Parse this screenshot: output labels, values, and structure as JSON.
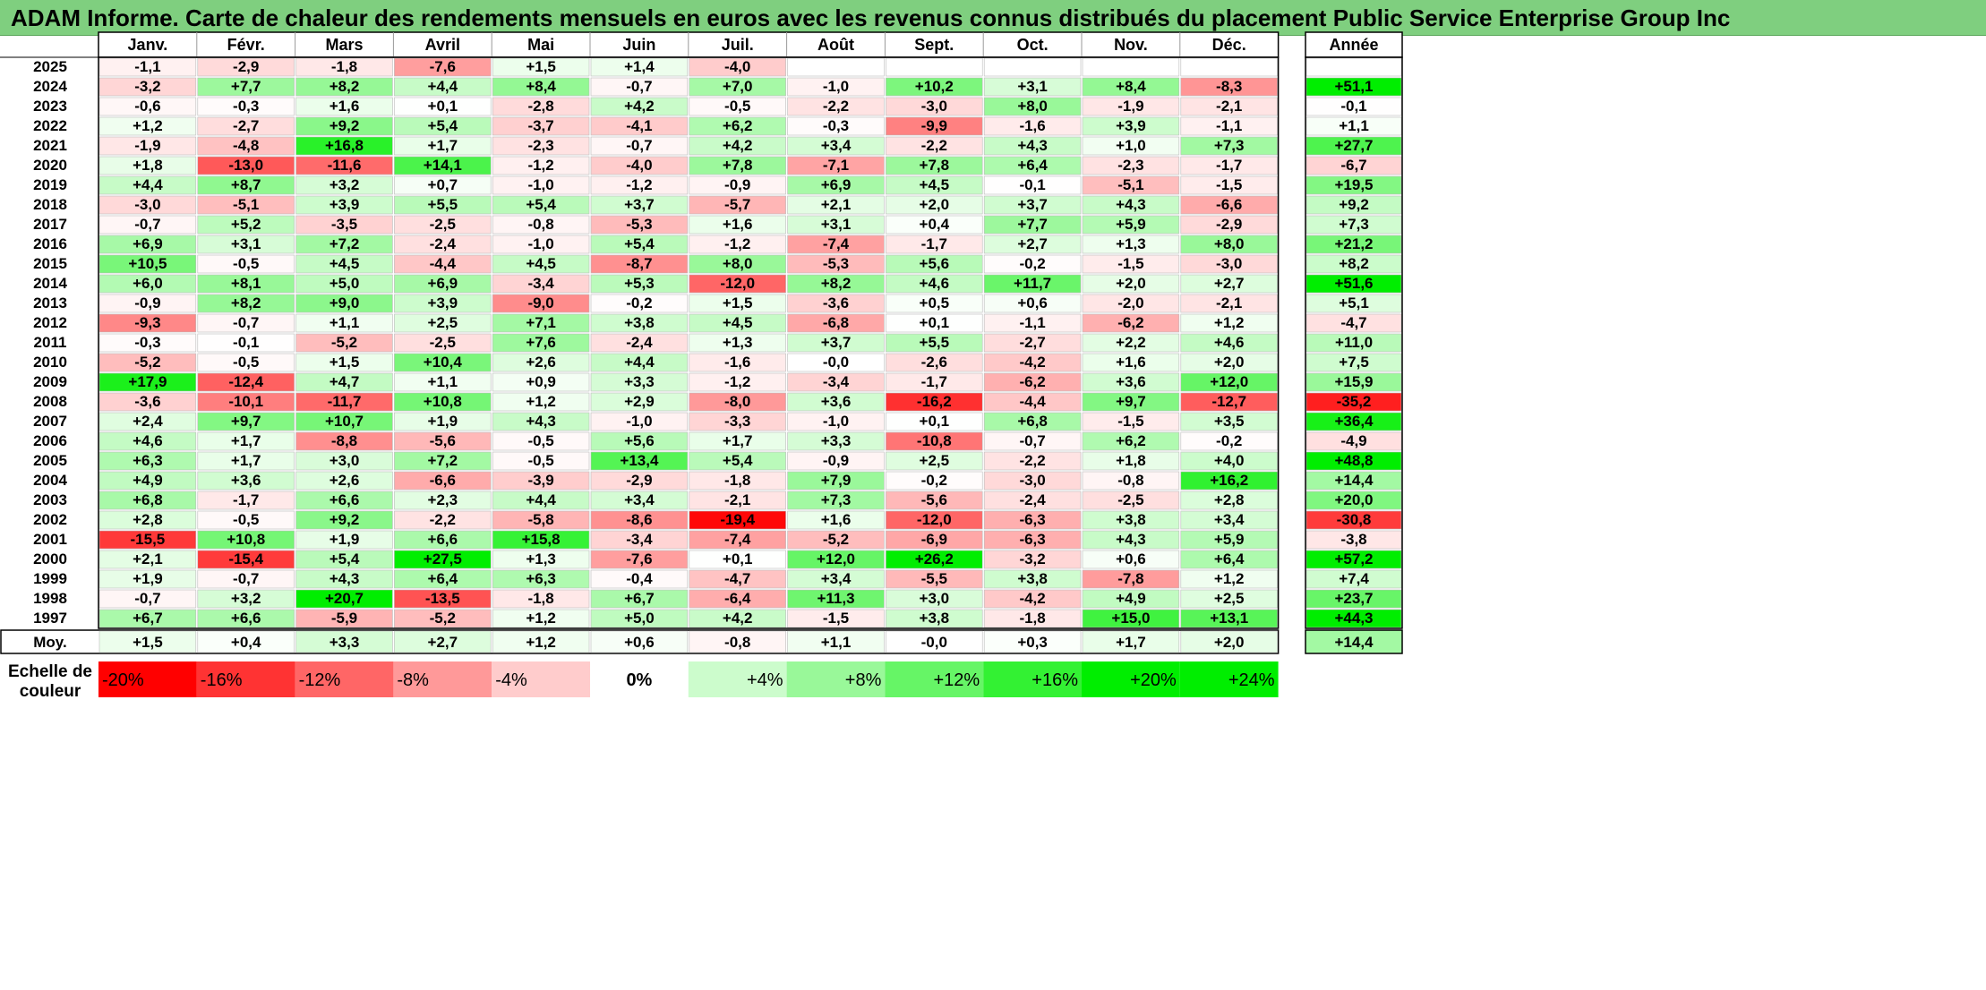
{
  "title": "ADAM Informe. Carte de chaleur des rendements mensuels en euros avec les revenus connus distribués du placement Public Service Enterprise Group Inc",
  "chart_data": {
    "type": "heatmap",
    "columns": [
      "Janv.",
      "Févr.",
      "Mars",
      "Avril",
      "Mai",
      "Juin",
      "Juil.",
      "Août",
      "Sept.",
      "Oct.",
      "Nov.",
      "Déc."
    ],
    "year_header": "Année",
    "rows": [
      {
        "year": "2025",
        "months": [
          "-1,1",
          "-2,9",
          "-1,8",
          "-7,6",
          "+1,5",
          "+1,4",
          "-4,0",
          "",
          "",
          "",
          "",
          ""
        ],
        "total": ""
      },
      {
        "year": "2024",
        "months": [
          "-3,2",
          "+7,7",
          "+8,2",
          "+4,4",
          "+8,4",
          "-0,7",
          "+7,0",
          "-1,0",
          "+10,2",
          "+3,1",
          "+8,4",
          "-8,3"
        ],
        "total": "+51,1"
      },
      {
        "year": "2023",
        "months": [
          "-0,6",
          "-0,3",
          "+1,6",
          "+0,1",
          "-2,8",
          "+4,2",
          "-0,5",
          "-2,2",
          "-3,0",
          "+8,0",
          "-1,9",
          "-2,1"
        ],
        "total": "-0,1"
      },
      {
        "year": "2022",
        "months": [
          "+1,2",
          "-2,7",
          "+9,2",
          "+5,4",
          "-3,7",
          "-4,1",
          "+6,2",
          "-0,3",
          "-9,9",
          "-1,6",
          "+3,9",
          "-1,1"
        ],
        "total": "+1,1"
      },
      {
        "year": "2021",
        "months": [
          "-1,9",
          "-4,8",
          "+16,8",
          "+1,7",
          "-2,3",
          "-0,7",
          "+4,2",
          "+3,4",
          "-2,2",
          "+4,3",
          "+1,0",
          "+7,3"
        ],
        "total": "+27,7"
      },
      {
        "year": "2020",
        "months": [
          "+1,8",
          "-13,0",
          "-11,6",
          "+14,1",
          "-1,2",
          "-4,0",
          "+7,8",
          "-7,1",
          "+7,8",
          "+6,4",
          "-2,3",
          "-1,7"
        ],
        "total": "-6,7"
      },
      {
        "year": "2019",
        "months": [
          "+4,4",
          "+8,7",
          "+3,2",
          "+0,7",
          "-1,0",
          "-1,2",
          "-0,9",
          "+6,9",
          "+4,5",
          "-0,1",
          "-5,1",
          "-1,5"
        ],
        "total": "+19,5"
      },
      {
        "year": "2018",
        "months": [
          "-3,0",
          "-5,1",
          "+3,9",
          "+5,5",
          "+5,4",
          "+3,7",
          "-5,7",
          "+2,1",
          "+2,0",
          "+3,7",
          "+4,3",
          "-6,6"
        ],
        "total": "+9,2"
      },
      {
        "year": "2017",
        "months": [
          "-0,7",
          "+5,2",
          "-3,5",
          "-2,5",
          "-0,8",
          "-5,3",
          "+1,6",
          "+3,1",
          "+0,4",
          "+7,7",
          "+5,9",
          "-2,9"
        ],
        "total": "+7,3"
      },
      {
        "year": "2016",
        "months": [
          "+6,9",
          "+3,1",
          "+7,2",
          "-2,4",
          "-1,0",
          "+5,4",
          "-1,2",
          "-7,4",
          "-1,7",
          "+2,7",
          "+1,3",
          "+8,0"
        ],
        "total": "+21,2"
      },
      {
        "year": "2015",
        "months": [
          "+10,5",
          "-0,5",
          "+4,5",
          "-4,4",
          "+4,5",
          "-8,7",
          "+8,0",
          "-5,3",
          "+5,6",
          "-0,2",
          "-1,5",
          "-3,0"
        ],
        "total": "+8,2"
      },
      {
        "year": "2014",
        "months": [
          "+6,0",
          "+8,1",
          "+5,0",
          "+6,9",
          "-3,4",
          "+5,3",
          "-12,0",
          "+8,2",
          "+4,6",
          "+11,7",
          "+2,0",
          "+2,7"
        ],
        "total": "+51,6"
      },
      {
        "year": "2013",
        "months": [
          "-0,9",
          "+8,2",
          "+9,0",
          "+3,9",
          "-9,0",
          "-0,2",
          "+1,5",
          "-3,6",
          "+0,5",
          "+0,6",
          "-2,0",
          "-2,1"
        ],
        "total": "+5,1"
      },
      {
        "year": "2012",
        "months": [
          "-9,3",
          "-0,7",
          "+1,1",
          "+2,5",
          "+7,1",
          "+3,8",
          "+4,5",
          "-6,8",
          "+0,1",
          "-1,1",
          "-6,2",
          "+1,2"
        ],
        "total": "-4,7"
      },
      {
        "year": "2011",
        "months": [
          "-0,3",
          "-0,1",
          "-5,2",
          "-2,5",
          "+7,6",
          "-2,4",
          "+1,3",
          "+3,7",
          "+5,5",
          "-2,7",
          "+2,2",
          "+4,6"
        ],
        "total": "+11,0"
      },
      {
        "year": "2010",
        "months": [
          "-5,2",
          "-0,5",
          "+1,5",
          "+10,4",
          "+2,6",
          "+4,4",
          "-1,6",
          "-0,0",
          "-2,6",
          "-4,2",
          "+1,6",
          "+2,0"
        ],
        "total": "+7,5"
      },
      {
        "year": "2009",
        "months": [
          "+17,9",
          "-12,4",
          "+4,7",
          "+1,1",
          "+0,9",
          "+3,3",
          "-1,2",
          "-3,4",
          "-1,7",
          "-6,2",
          "+3,6",
          "+12,0"
        ],
        "total": "+15,9"
      },
      {
        "year": "2008",
        "months": [
          "-3,6",
          "-10,1",
          "-11,7",
          "+10,8",
          "+1,2",
          "+2,9",
          "-8,0",
          "+3,6",
          "-16,2",
          "-4,4",
          "+9,7",
          "-12,7"
        ],
        "total": "-35,2"
      },
      {
        "year": "2007",
        "months": [
          "+2,4",
          "+9,7",
          "+10,7",
          "+1,9",
          "+4,3",
          "-1,0",
          "-3,3",
          "-1,0",
          "+0,1",
          "+6,8",
          "-1,5",
          "+3,5"
        ],
        "total": "+36,4"
      },
      {
        "year": "2006",
        "months": [
          "+4,6",
          "+1,7",
          "-8,8",
          "-5,6",
          "-0,5",
          "+5,6",
          "+1,7",
          "+3,3",
          "-10,8",
          "-0,7",
          "+6,2",
          "-0,2"
        ],
        "total": "-4,9"
      },
      {
        "year": "2005",
        "months": [
          "+6,3",
          "+1,7",
          "+3,0",
          "+7,2",
          "-0,5",
          "+13,4",
          "+5,4",
          "-0,9",
          "+2,5",
          "-2,2",
          "+1,8",
          "+4,0"
        ],
        "total": "+48,8"
      },
      {
        "year": "2004",
        "months": [
          "+4,9",
          "+3,6",
          "+2,6",
          "-6,6",
          "-3,9",
          "-2,9",
          "-1,8",
          "+7,9",
          "-0,2",
          "-3,0",
          "-0,8",
          "+16,2"
        ],
        "total": "+14,4"
      },
      {
        "year": "2003",
        "months": [
          "+6,8",
          "-1,7",
          "+6,6",
          "+2,3",
          "+4,4",
          "+3,4",
          "-2,1",
          "+7,3",
          "-5,6",
          "-2,4",
          "-2,5",
          "+2,8"
        ],
        "total": "+20,0"
      },
      {
        "year": "2002",
        "months": [
          "+2,8",
          "-0,5",
          "+9,2",
          "-2,2",
          "-5,8",
          "-8,6",
          "-19,4",
          "+1,6",
          "-12,0",
          "-6,3",
          "+3,8",
          "+3,4"
        ],
        "total": "-30,8"
      },
      {
        "year": "2001",
        "months": [
          "-15,5",
          "+10,8",
          "+1,9",
          "+6,6",
          "+15,8",
          "-3,4",
          "-7,4",
          "-5,2",
          "-6,9",
          "-6,3",
          "+4,3",
          "+5,9"
        ],
        "total": "-3,8"
      },
      {
        "year": "2000",
        "months": [
          "+2,1",
          "-15,4",
          "+5,4",
          "+27,5",
          "+1,3",
          "-7,6",
          "+0,1",
          "+12,0",
          "+26,2",
          "-3,2",
          "+0,6",
          "+6,4"
        ],
        "total": "+57,2"
      },
      {
        "year": "1999",
        "months": [
          "+1,9",
          "-0,7",
          "+4,3",
          "+6,4",
          "+6,3",
          "-0,4",
          "-4,7",
          "+3,4",
          "-5,5",
          "+3,8",
          "-7,8",
          "+1,2"
        ],
        "total": "+7,4"
      },
      {
        "year": "1998",
        "months": [
          "-0,7",
          "+3,2",
          "+20,7",
          "-13,5",
          "-1,8",
          "+6,7",
          "-6,4",
          "+11,3",
          "+3,0",
          "-4,2",
          "+4,9",
          "+2,5"
        ],
        "total": "+23,7"
      },
      {
        "year": "1997",
        "months": [
          "+6,7",
          "+6,6",
          "-5,9",
          "-5,2",
          "+1,2",
          "+5,0",
          "+4,2",
          "-1,5",
          "+3,8",
          "-1,8",
          "+15,0",
          "+13,1"
        ],
        "total": "+44,3"
      }
    ],
    "average": {
      "label": "Moy.",
      "months": [
        "+1,5",
        "+0,4",
        "+3,3",
        "+2,7",
        "+1,2",
        "+0,6",
        "-0,8",
        "+1,1",
        "-0,0",
        "+0,3",
        "+1,7",
        "+2,0"
      ],
      "total": "+14,4"
    },
    "scale": {
      "label_line1": "Echelle de",
      "label_line2": "couleur",
      "items": [
        "-20%",
        "-16%",
        "-12%",
        "-8%",
        "-4%",
        "0%",
        "+4%",
        "+8%",
        "+12%",
        "+16%",
        "+20%",
        "+24%"
      ],
      "values": [
        -20,
        -16,
        -12,
        -8,
        -4,
        0,
        4,
        8,
        12,
        16,
        20,
        24
      ]
    },
    "colors": {
      "negative": "#ff0000",
      "neutral": "#ffffff",
      "positive": "#00ee00"
    }
  }
}
